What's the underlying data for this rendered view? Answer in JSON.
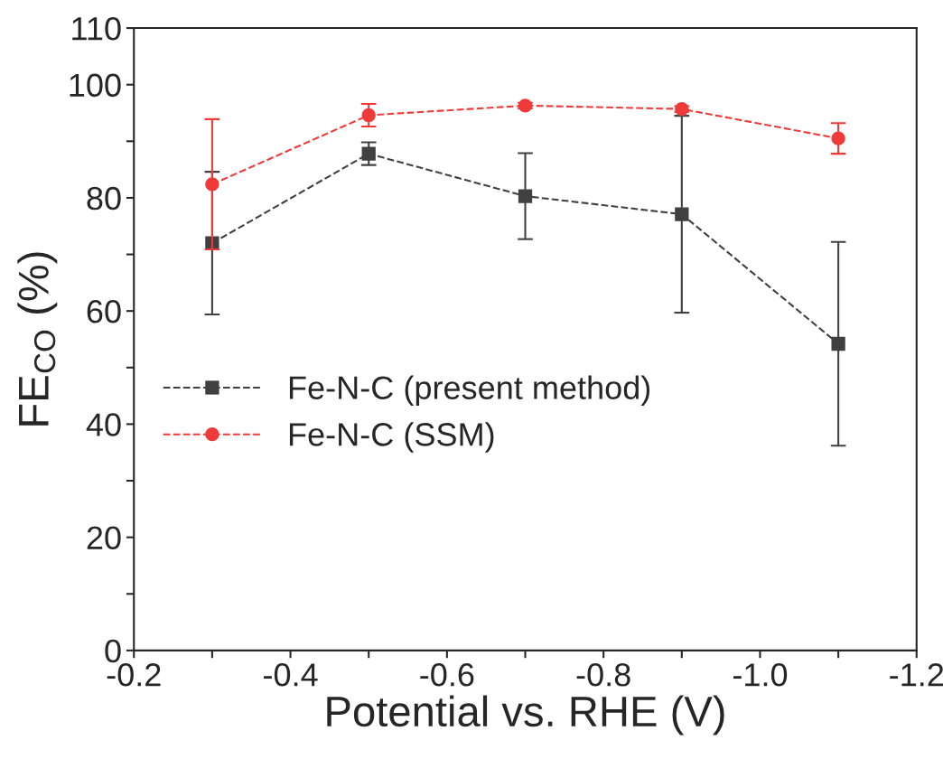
{
  "chart_data": {
    "type": "line",
    "xlabel": "Potential vs. RHE (V)",
    "ylabel": "FE$_{CO}$ (%)",
    "x": [
      -0.3,
      -0.5,
      -0.7,
      -0.9,
      -1.1
    ],
    "xlim": [
      -0.2,
      -1.2
    ],
    "xticks": [
      -0.2,
      {
        "value": -0.3,
        "label": null
      },
      -0.4,
      {
        "value": -0.5,
        "label": null
      },
      -0.6,
      {
        "value": -0.7,
        "label": null
      },
      -0.8,
      {
        "value": -0.9,
        "label": null
      },
      {
        "value": -1.0,
        "label": "-1.0"
      },
      {
        "value": -1.1,
        "label": null
      },
      -1.2
    ],
    "ylim": [
      0,
      110
    ],
    "yticks": [
      0,
      {
        "value": 10,
        "label": null
      },
      20,
      {
        "value": 30,
        "label": null
      },
      40,
      {
        "value": 50,
        "label": null
      },
      60,
      {
        "value": 70,
        "label": null
      },
      80,
      {
        "value": 90,
        "label": null
      },
      100,
      110
    ],
    "series": [
      {
        "name": "Fe-N-C (present method)",
        "color": "#404040",
        "marker": "square",
        "values": [
          72,
          87.8,
          80.3,
          77.1,
          54.2
        ],
        "errors": [
          12.6,
          2,
          7.6,
          17.4,
          18
        ]
      },
      {
        "name": "Fe-N-C (SSM)",
        "color": "#f03a3a",
        "marker": "circle",
        "values": [
          82.4,
          94.6,
          96.3,
          95.7,
          90.5
        ],
        "errors": [
          11.5,
          2,
          0.5,
          0.5,
          2.7
        ]
      }
    ],
    "line_style": "dashed",
    "legend": "center left",
    "grid": false
  }
}
